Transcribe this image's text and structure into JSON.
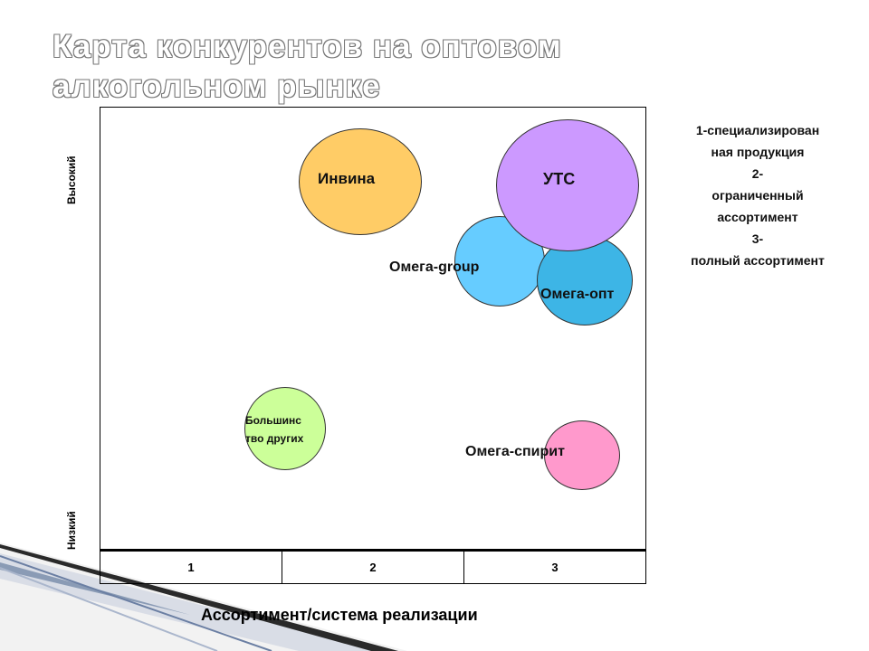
{
  "title": "Карта конкурентов на оптовом алкогольном рынке",
  "y_axis": {
    "high_label": "Высокий",
    "low_label": "Низкий"
  },
  "x_axis": {
    "label": "Ассортимент/система реализации",
    "ticks": [
      "1",
      "2",
      "3"
    ]
  },
  "bubbles": [
    {
      "name": "Инвина",
      "color": "#FFCC66"
    },
    {
      "name": "Омега-group",
      "color": "#66CCFF"
    },
    {
      "name": "Омега-опт",
      "color": "#3DB5E6"
    },
    {
      "name": "УТС",
      "color": "#CC99FF"
    },
    {
      "name": "Большинс тво других",
      "line1": "Большинс",
      "line2": "тво других",
      "color": "#CCFF99"
    },
    {
      "name": "Омега-спирит",
      "color": "#FF99CC"
    }
  ],
  "legend": [
    "1-специализирован",
    "ная продукция",
    "2-",
    "ограниченный",
    "ассортимент",
    "3-",
    "полный ассортимент"
  ]
}
